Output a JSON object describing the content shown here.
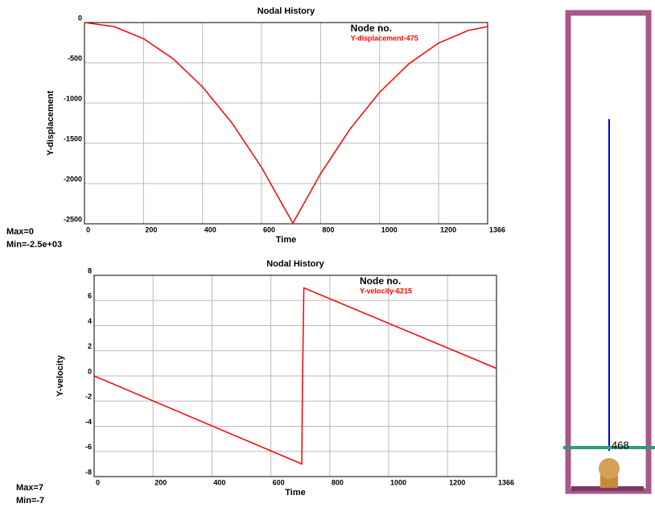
{
  "chart_data": [
    {
      "type": "line",
      "title": "Nodal History",
      "xlabel": "Time",
      "ylabel": "Y-displacement",
      "legend_title": "Node no.",
      "x": [
        0,
        100,
        200,
        300,
        400,
        500,
        600,
        706,
        800,
        900,
        1000,
        1100,
        1200,
        1300,
        1366
      ],
      "series": [
        {
          "name": "Y-displacement-475",
          "color": "#ff0000",
          "values": [
            0,
            -50,
            -200,
            -450,
            -800,
            -1250,
            -1800,
            -2492,
            -1878,
            -1322,
            -866,
            -510,
            -254,
            -98,
            -50
          ]
        }
      ],
      "xlim": [
        0,
        1366
      ],
      "xticks": [
        0,
        200,
        400,
        600,
        800,
        1000,
        1200,
        1366
      ],
      "ylim": [
        -2500,
        0
      ],
      "yticks": [
        0,
        -500,
        -1000,
        -1500,
        -2000,
        -2500
      ],
      "grid": true,
      "annotations": [
        "Max=0",
        "Min=-2.5e+03"
      ]
    },
    {
      "type": "line",
      "title": "Nodal History",
      "xlabel": "Time",
      "ylabel": "Y-velocity",
      "legend_title": "Node no.",
      "x": [
        0,
        705,
        707,
        712,
        1366
      ],
      "series": [
        {
          "name": "Y-velocity-6215",
          "color": "#ff0000",
          "values": [
            0,
            -7,
            -1.2,
            7,
            0.6
          ]
        }
      ],
      "xlim": [
        0,
        1366
      ],
      "xticks": [
        0,
        200,
        400,
        600,
        800,
        1000,
        1200,
        1366
      ],
      "ylim": [
        -8,
        8
      ],
      "yticks": [
        8,
        6,
        4,
        2,
        0,
        -2,
        -4,
        -6,
        -8
      ],
      "grid": true,
      "annotations": [
        "Max=7",
        "Min=-7"
      ]
    }
  ],
  "scene": {
    "node_label": "468"
  }
}
